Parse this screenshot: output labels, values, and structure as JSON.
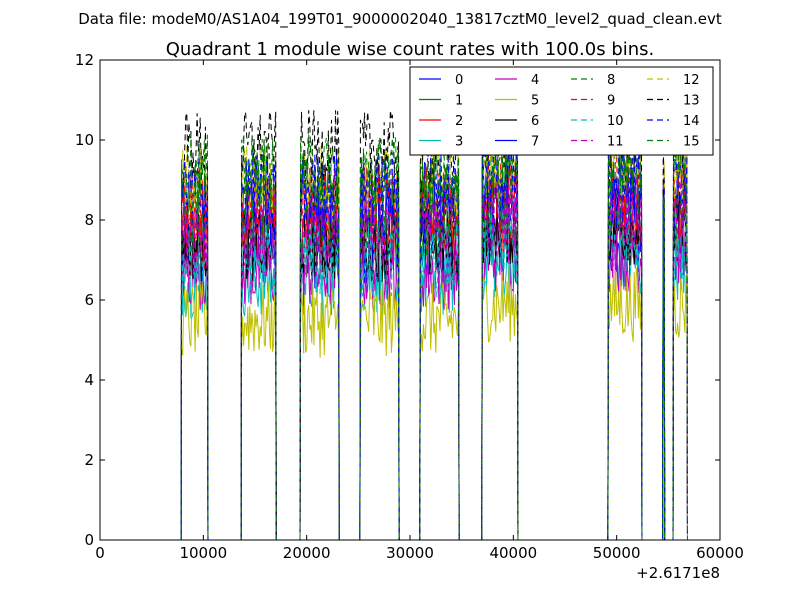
{
  "chart_data": {
    "type": "line",
    "suptitle": "Data file: modeM0/AS1A04_199T01_9000002040_13817cztM0_level2_quad_clean.evt",
    "title": "Quadrant 1 module wise count rates with 100.0s bins.",
    "xlabel": "",
    "ylabel": "",
    "x_offset_label": "+2.6171e8",
    "xlim": [
      0,
      60000
    ],
    "ylim": [
      0,
      12
    ],
    "x_ticks": [
      0,
      10000,
      20000,
      30000,
      40000,
      50000,
      60000
    ],
    "x_tick_labels": [
      "0",
      "10000",
      "20000",
      "30000",
      "40000",
      "50000",
      "60000"
    ],
    "y_ticks": [
      0,
      2,
      4,
      6,
      8,
      10,
      12
    ],
    "y_tick_labels": [
      "0",
      "2",
      "4",
      "6",
      "8",
      "10",
      "12"
    ],
    "grid": false,
    "legend_position": "top-right",
    "legend_columns": 4,
    "segments": [
      {
        "start": 7900,
        "end": 10400
      },
      {
        "start": 13700,
        "end": 17000
      },
      {
        "start": 19400,
        "end": 23100
      },
      {
        "start": 25200,
        "end": 28900
      },
      {
        "start": 31000,
        "end": 34700
      },
      {
        "start": 37000,
        "end": 40400
      },
      {
        "start": 49200,
        "end": 52400
      },
      {
        "start": 54500,
        "end": 54600
      },
      {
        "start": 55500,
        "end": 56800
      }
    ],
    "series": [
      {
        "name": "0",
        "color": "#0000ff",
        "dash": "solid",
        "level": 7.2
      },
      {
        "name": "1",
        "color": "#008000",
        "dash": "solid",
        "level": 8.6
      },
      {
        "name": "2",
        "color": "#ff0000",
        "dash": "solid",
        "level": 7.5
      },
      {
        "name": "3",
        "color": "#00bfbf",
        "dash": "solid",
        "level": 6.5
      },
      {
        "name": "4",
        "color": "#bf00bf",
        "dash": "solid",
        "level": 6.7
      },
      {
        "name": "5",
        "color": "#bfbf00",
        "dash": "solid",
        "level": 5.5
      },
      {
        "name": "6",
        "color": "#000000",
        "dash": "solid",
        "level": 7.4
      },
      {
        "name": "7",
        "color": "#0000ff",
        "dash": "solid",
        "level": 8.3
      },
      {
        "name": "8",
        "color": "#008000",
        "dash": "dashed",
        "level": 8.0
      },
      {
        "name": "9",
        "color": "#ff0000",
        "dash": "dashed",
        "level": 8.4
      },
      {
        "name": "10",
        "color": "#00bfbf",
        "dash": "dashed",
        "level": 7.0
      },
      {
        "name": "11",
        "color": "#bf00bf",
        "dash": "dashed",
        "level": 7.8
      },
      {
        "name": "12",
        "color": "#bfbf00",
        "dash": "dashed",
        "level": 9.0
      },
      {
        "name": "13",
        "color": "#000000",
        "dash": "dashed",
        "level": 9.8
      },
      {
        "name": "14",
        "color": "#0000ff",
        "dash": "dashed",
        "level": 8.8
      },
      {
        "name": "15",
        "color": "#008000",
        "dash": "dashed",
        "level": 9.2
      }
    ]
  }
}
